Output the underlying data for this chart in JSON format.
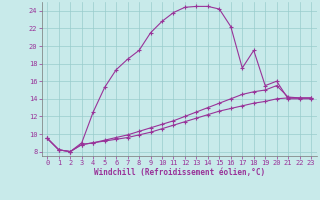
{
  "xlabel": "Windchill (Refroidissement éolien,°C)",
  "background_color": "#c8eaea",
  "line_color": "#993399",
  "grid_color": "#99cccc",
  "xlim": [
    -0.5,
    23.5
  ],
  "ylim": [
    7.5,
    25.0
  ],
  "xticks": [
    0,
    1,
    2,
    3,
    4,
    5,
    6,
    7,
    8,
    9,
    10,
    11,
    12,
    13,
    14,
    15,
    16,
    17,
    18,
    19,
    20,
    21,
    22,
    23
  ],
  "yticks": [
    8,
    10,
    12,
    14,
    16,
    18,
    20,
    22,
    24
  ],
  "curve1_x": [
    0,
    1,
    2,
    3,
    4,
    5,
    6,
    7,
    8,
    9,
    10,
    11,
    12,
    13,
    14,
    15,
    16,
    17,
    18,
    19,
    20,
    21,
    22,
    23
  ],
  "curve1_y": [
    9.5,
    8.2,
    8.0,
    9.0,
    12.5,
    15.3,
    17.3,
    18.5,
    19.5,
    21.5,
    22.8,
    23.8,
    24.4,
    24.5,
    24.5,
    24.2,
    22.2,
    17.5,
    19.5,
    15.5,
    16.0,
    14.0,
    14.0,
    14.0
  ],
  "curve2_x": [
    0,
    1,
    2,
    3,
    4,
    5,
    6,
    7,
    8,
    9,
    10,
    11,
    12,
    13,
    14,
    15,
    16,
    17,
    18,
    19,
    20,
    21,
    22,
    23
  ],
  "curve2_y": [
    9.5,
    8.2,
    8.0,
    8.8,
    9.0,
    9.3,
    9.6,
    9.9,
    10.3,
    10.7,
    11.1,
    11.5,
    12.0,
    12.5,
    13.0,
    13.5,
    14.0,
    14.5,
    14.8,
    15.0,
    15.5,
    14.2,
    14.1,
    14.1
  ],
  "curve3_x": [
    0,
    1,
    2,
    3,
    4,
    5,
    6,
    7,
    8,
    9,
    10,
    11,
    12,
    13,
    14,
    15,
    16,
    17,
    18,
    19,
    20,
    21,
    22,
    23
  ],
  "curve3_y": [
    9.5,
    8.2,
    8.0,
    8.8,
    9.0,
    9.2,
    9.4,
    9.6,
    9.9,
    10.2,
    10.6,
    11.0,
    11.4,
    11.8,
    12.2,
    12.6,
    12.9,
    13.2,
    13.5,
    13.7,
    14.0,
    14.1,
    14.1,
    14.1
  ]
}
